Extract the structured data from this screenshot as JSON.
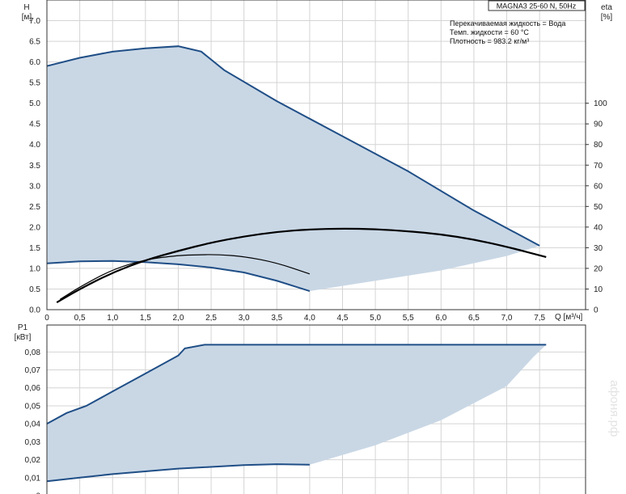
{
  "watermark": "афоня.рф",
  "chart_data": [
    {
      "type": "line",
      "title": "MAGNA3 25-60 N, 50Hz",
      "info": [
        "Перекачиваемая жидкость = Вода",
        "Темп. жидкости = 60 °C",
        "Плотность = 983.2 кг/м³"
      ],
      "xlabel": "Q [м³/ч]",
      "ylabel_left": [
        "H",
        "[м]"
      ],
      "ylabel_right": [
        "eta",
        "[%]"
      ],
      "xlim": [
        0,
        8.2
      ],
      "ylim": [
        0,
        7.5
      ],
      "ylim_right": [
        0,
        100
      ],
      "x_ticks": [
        0,
        0.5,
        1.0,
        1.5,
        2.0,
        2.5,
        3.0,
        3.5,
        4.0,
        4.5,
        5.0,
        5.5,
        6.0,
        6.5,
        7.0,
        7.5
      ],
      "x_tick_labels": [
        "0",
        "0,5",
        "1,0",
        "1,5",
        "2,0",
        "2,5",
        "3,0",
        "3,5",
        "4,0",
        "4,5",
        "5,0",
        "5,5",
        "6,0",
        "6,5",
        "7,0",
        "7,5"
      ],
      "y_ticks": [
        0,
        0.5,
        1.0,
        1.5,
        2.0,
        2.5,
        3.0,
        3.5,
        4.0,
        4.5,
        5.0,
        5.5,
        6.0,
        6.5,
        7.0
      ],
      "y_tick_labels": [
        "0.0",
        "0.5",
        "1.0",
        "1.5",
        "2.0",
        "2.5",
        "3.0",
        "3.5",
        "4.0",
        "4.5",
        "5.0",
        "5.5",
        "6.0",
        "6.5",
        "7.0"
      ],
      "y_right_ticks": [
        0,
        10,
        20,
        30,
        40,
        50,
        60,
        70,
        80,
        90,
        100
      ],
      "y_right_tick_labels": [
        "0",
        "10",
        "20",
        "30",
        "40",
        "50",
        "60",
        "70",
        "80",
        "90",
        "100"
      ],
      "grid": true,
      "envelope_max": {
        "x": [
          0,
          0.5,
          1.0,
          1.5,
          2.0,
          2.35,
          2.7,
          3.5,
          4.5,
          5.5,
          6.5,
          7.5
        ],
        "y": [
          5.9,
          6.1,
          6.25,
          6.33,
          6.38,
          6.25,
          5.8,
          5.05,
          4.2,
          3.35,
          2.4,
          1.55
        ]
      },
      "envelope_min": {
        "x": [
          0,
          0.5,
          1.0,
          1.5,
          2.0,
          2.5,
          3.0,
          3.5,
          4.0
        ],
        "y": [
          1.12,
          1.17,
          1.18,
          1.15,
          1.1,
          1.02,
          0.9,
          0.7,
          0.45
        ]
      },
      "envelope_bottom_edge": {
        "x": [
          4.0,
          5.0,
          6.0,
          7.0,
          7.5
        ],
        "y": [
          0.45,
          0.7,
          0.95,
          1.3,
          1.55
        ]
      },
      "series": [
        {
          "axis": "right",
          "x": [
            0.15,
            0.5,
            1.0,
            1.5,
            2.0,
            2.5,
            3.0,
            3.5,
            4.0,
            4.5,
            5.0,
            5.5,
            6.0,
            6.5,
            7.0,
            7.6
          ],
          "y": [
            3.5,
            10,
            18,
            24,
            28.5,
            32.5,
            35.5,
            37.7,
            38.9,
            39.3,
            39,
            38,
            36.5,
            34,
            30.5,
            25.5
          ]
        },
        {
          "axis": "right",
          "x": [
            0.2,
            0.5,
            1.0,
            1.5,
            2.0,
            2.3,
            2.6,
            3.0,
            3.5,
            4.0
          ],
          "y": [
            5,
            11,
            19.5,
            24.3,
            26.3,
            26.6,
            26.7,
            25.8,
            22.7,
            17.3
          ]
        }
      ]
    },
    {
      "type": "area",
      "xlabel": "",
      "ylabel": [
        "P1",
        "[кВт]"
      ],
      "xlim": [
        0,
        8.2
      ],
      "ylim": [
        0,
        0.095
      ],
      "x_ticks": [
        0,
        0.5,
        1.0,
        1.5,
        2.0,
        2.5,
        3.0,
        3.5,
        4.0,
        4.5,
        5.0,
        5.5,
        6.0,
        6.5,
        7.0,
        7.5
      ],
      "y_ticks": [
        0,
        0.01,
        0.02,
        0.03,
        0.04,
        0.05,
        0.06,
        0.07,
        0.08
      ],
      "y_tick_labels": [
        "0",
        "0,01",
        "0,02",
        "0,03",
        "0,04",
        "0,05",
        "0,06",
        "0,07",
        "0,08"
      ],
      "grid": true,
      "envelope_max": {
        "x": [
          0,
          0.3,
          0.6,
          1.0,
          1.5,
          2.0,
          2.1,
          2.4,
          4.5,
          7.6
        ],
        "y": [
          0.04,
          0.046,
          0.05,
          0.058,
          0.068,
          0.078,
          0.082,
          0.084,
          0.084,
          0.084
        ]
      },
      "envelope_min": {
        "x": [
          0,
          0.5,
          1.0,
          2.0,
          3.0,
          3.5,
          4.0
        ],
        "y": [
          0.008,
          0.01,
          0.012,
          0.015,
          0.017,
          0.0175,
          0.0172
        ]
      },
      "envelope_bottom_edge": {
        "x": [
          4.0,
          5.0,
          6.0,
          7.0,
          7.4,
          7.6
        ],
        "y": [
          0.0172,
          0.028,
          0.042,
          0.061,
          0.077,
          0.084
        ]
      }
    }
  ]
}
